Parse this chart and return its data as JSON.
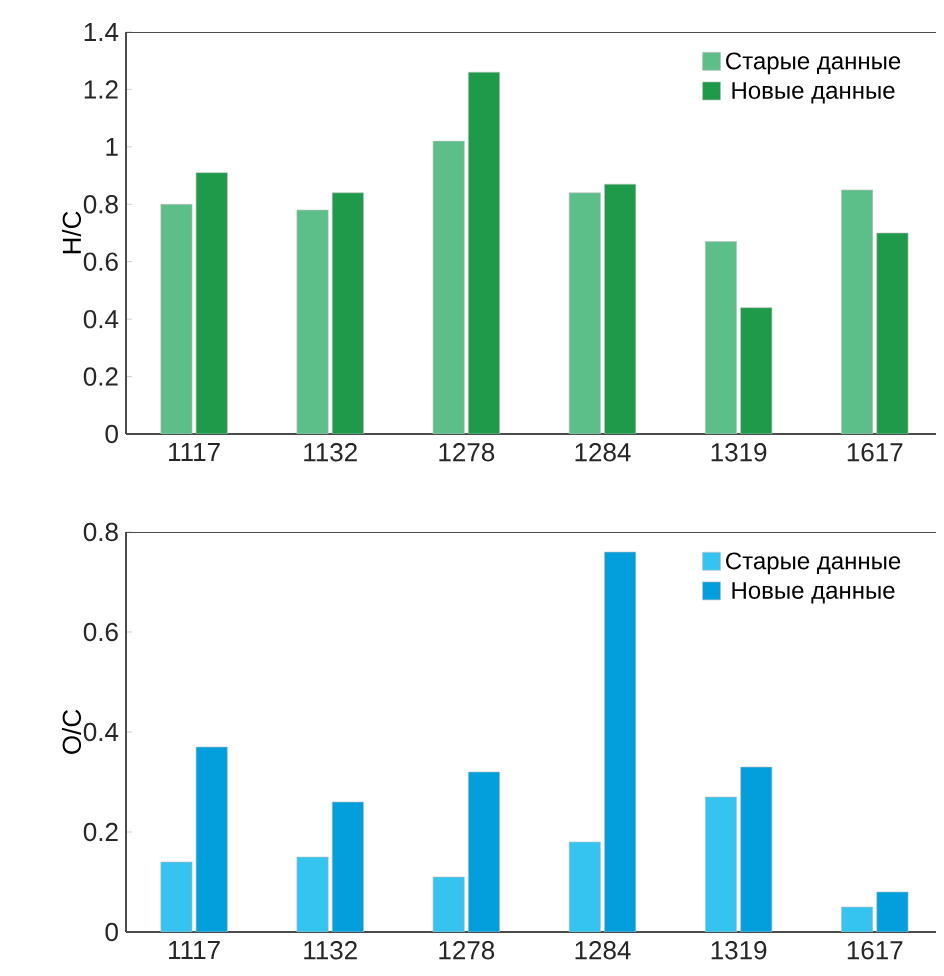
{
  "chart_data": [
    {
      "type": "bar",
      "ylabel": "H/C",
      "categories": [
        "1117",
        "1132",
        "1278",
        "1284",
        "1319",
        "1617"
      ],
      "series": [
        {
          "name": "Старые данные",
          "color": "#5cbf8a",
          "values": [
            0.8,
            0.78,
            1.02,
            0.84,
            0.67,
            0.85
          ]
        },
        {
          "name": "Новые данные",
          "color": "#1e9a4a",
          "values": [
            0.91,
            0.84,
            1.26,
            0.87,
            0.44,
            0.7
          ]
        }
      ],
      "ylim": [
        0,
        1.4
      ],
      "yticks": [
        0,
        0.2,
        0.4,
        0.6,
        0.8,
        1,
        1.2,
        1.4
      ],
      "legend": "top right",
      "grid": false
    },
    {
      "type": "bar",
      "ylabel": "O/C",
      "categories": [
        "1117",
        "1132",
        "1278",
        "1284",
        "1319",
        "1617"
      ],
      "series": [
        {
          "name": "Старые данные",
          "color": "#35c3f0",
          "values": [
            0.14,
            0.15,
            0.11,
            0.18,
            0.27,
            0.05
          ]
        },
        {
          "name": "Новые данные",
          "color": "#039fdc",
          "values": [
            0.37,
            0.26,
            0.32,
            0.76,
            0.33,
            0.08
          ]
        }
      ],
      "ylim": [
        0,
        0.8
      ],
      "yticks": [
        0,
        0.2,
        0.4,
        0.6,
        0.8
      ],
      "legend": "top right",
      "grid": false
    }
  ]
}
